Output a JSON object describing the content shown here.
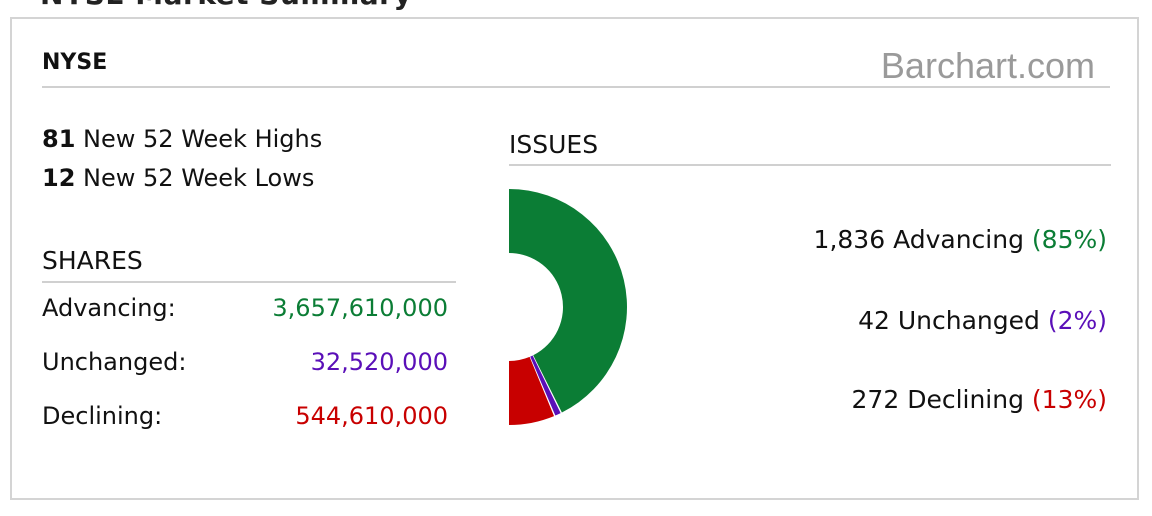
{
  "page_heading_partial": "NYSE Market Summary",
  "exchange": "NYSE",
  "brand": "Barchart.com",
  "highs": {
    "count": "81",
    "label": "New 52 Week Highs"
  },
  "lows": {
    "count": "12",
    "label": "New 52 Week Lows"
  },
  "shares": {
    "title": "SHARES",
    "rows": [
      {
        "label": "Advancing:",
        "value": "3,657,610,000"
      },
      {
        "label": "Unchanged:",
        "value": "32,520,000"
      },
      {
        "label": "Declining:",
        "value": "544,610,000"
      }
    ]
  },
  "issues": {
    "title": "ISSUES",
    "rows": [
      {
        "text": "1,836 Advancing",
        "pct": "(85%)"
      },
      {
        "text": "42 Unchanged",
        "pct": "(2%)"
      },
      {
        "text": "272 Declining",
        "pct": "(13%)"
      }
    ]
  },
  "chart_data": {
    "type": "pie",
    "categories": [
      "Advancing",
      "Unchanged",
      "Declining"
    ],
    "values": [
      1836,
      42,
      272
    ],
    "colors": [
      "#0b7d35",
      "#5a0fb8",
      "#c80000"
    ]
  }
}
